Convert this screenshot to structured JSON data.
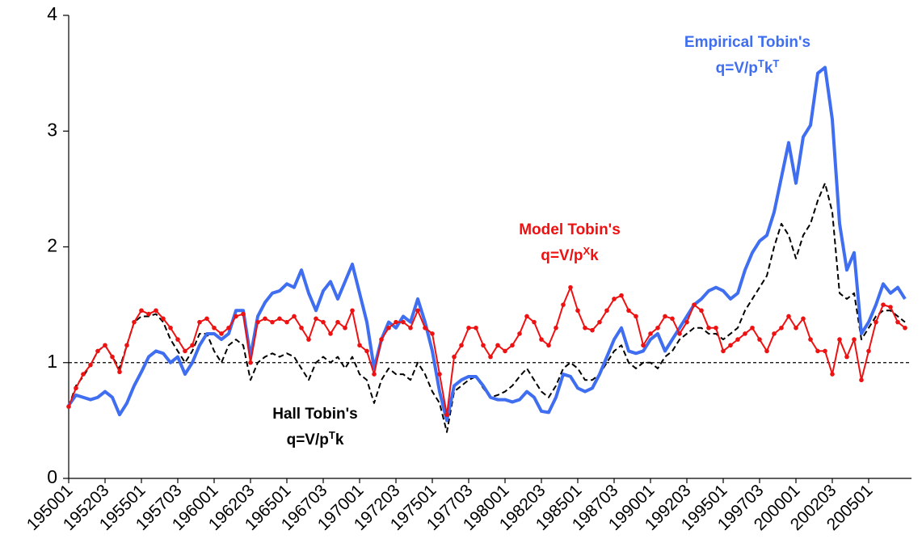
{
  "chart_data": {
    "type": "line",
    "categories": [
      "195001",
      null,
      null,
      null,
      null,
      "195203",
      null,
      null,
      null,
      null,
      "195501",
      null,
      null,
      null,
      null,
      "195703",
      null,
      null,
      null,
      null,
      "196001",
      null,
      null,
      null,
      null,
      "196203",
      null,
      null,
      null,
      null,
      "196501",
      null,
      null,
      null,
      null,
      "196703",
      null,
      null,
      null,
      null,
      "197001",
      null,
      null,
      null,
      null,
      "197203",
      null,
      null,
      null,
      null,
      "197501",
      null,
      null,
      null,
      null,
      "197703",
      null,
      null,
      null,
      null,
      "198001",
      null,
      null,
      null,
      null,
      "198203",
      null,
      null,
      null,
      null,
      "198501",
      null,
      null,
      null,
      null,
      "198703",
      null,
      null,
      null,
      null,
      "199001",
      null,
      null,
      null,
      null,
      "199203",
      null,
      null,
      null,
      null,
      "199501",
      null,
      null,
      null,
      null,
      "199703",
      null,
      null,
      null,
      null,
      "200001",
      null,
      null,
      null,
      null,
      "200203",
      null,
      null,
      null,
      null,
      "200501",
      null,
      null,
      null,
      null,
      null
    ],
    "series": [
      {
        "name": "Hall Tobin's",
        "formula": [
          "q=V/p",
          "T",
          "k"
        ],
        "color": "#000000",
        "dash": true,
        "markers": false,
        "values": [
          0.62,
          0.8,
          0.88,
          0.98,
          1.1,
          1.15,
          1.05,
          0.95,
          1.15,
          1.35,
          1.4,
          1.4,
          1.42,
          1.35,
          1.2,
          1.1,
          1.0,
          1.1,
          1.25,
          1.25,
          1.1,
          1.0,
          1.15,
          1.2,
          1.15,
          0.85,
          1.0,
          1.05,
          1.08,
          1.05,
          1.08,
          1.05,
          0.95,
          0.85,
          1.0,
          1.05,
          1.0,
          1.05,
          0.95,
          1.05,
          0.9,
          0.85,
          0.65,
          0.85,
          0.95,
          0.9,
          0.9,
          0.85,
          1.0,
          0.9,
          0.75,
          0.65,
          0.4,
          0.75,
          0.8,
          0.85,
          0.88,
          0.78,
          0.7,
          0.72,
          0.75,
          0.8,
          0.88,
          0.95,
          0.85,
          0.75,
          0.7,
          0.8,
          0.95,
          1.0,
          0.95,
          0.85,
          0.85,
          0.9,
          1.0,
          1.1,
          1.15,
          1.0,
          0.95,
          1.0,
          1.0,
          0.95,
          1.05,
          1.1,
          1.2,
          1.25,
          1.3,
          1.3,
          1.25,
          1.25,
          1.2,
          1.25,
          1.3,
          1.45,
          1.55,
          1.65,
          1.75,
          2.0,
          2.2,
          2.1,
          1.9,
          2.1,
          2.2,
          2.4,
          2.55,
          2.3,
          1.6,
          1.55,
          1.6,
          1.2,
          1.3,
          1.4,
          1.45,
          1.45,
          1.4,
          1.35
        ]
      },
      {
        "name": "Empirical Tobin's",
        "formula": [
          "q=V/p",
          "T",
          "k",
          "T"
        ],
        "color": "#3f6ef0",
        "dash": false,
        "markers": false,
        "values": [
          0.63,
          0.72,
          0.7,
          0.68,
          0.7,
          0.75,
          0.7,
          0.55,
          0.65,
          0.8,
          0.92,
          1.05,
          1.1,
          1.08,
          1.0,
          1.05,
          0.9,
          1.0,
          1.15,
          1.25,
          1.25,
          1.2,
          1.25,
          1.45,
          1.45,
          1.05,
          1.4,
          1.52,
          1.6,
          1.62,
          1.68,
          1.65,
          1.8,
          1.6,
          1.45,
          1.62,
          1.7,
          1.55,
          1.7,
          1.85,
          1.6,
          1.35,
          0.95,
          1.2,
          1.35,
          1.3,
          1.4,
          1.35,
          1.55,
          1.35,
          1.1,
          0.75,
          0.5,
          0.8,
          0.85,
          0.88,
          0.88,
          0.8,
          0.7,
          0.68,
          0.68,
          0.66,
          0.68,
          0.75,
          0.7,
          0.58,
          0.57,
          0.7,
          0.9,
          0.88,
          0.78,
          0.75,
          0.78,
          0.9,
          1.05,
          1.2,
          1.3,
          1.1,
          1.08,
          1.1,
          1.2,
          1.25,
          1.1,
          1.2,
          1.3,
          1.4,
          1.5,
          1.55,
          1.62,
          1.65,
          1.62,
          1.55,
          1.6,
          1.8,
          1.95,
          2.05,
          2.1,
          2.3,
          2.6,
          2.9,
          2.55,
          2.95,
          3.05,
          3.5,
          3.55,
          3.1,
          2.2,
          1.8,
          1.95,
          1.25,
          1.35,
          1.5,
          1.68,
          1.6,
          1.65,
          1.55
        ]
      },
      {
        "name": "Model Tobin's",
        "formula": [
          "q=V/p",
          "X",
          "k"
        ],
        "color": "#ee1111",
        "dash": false,
        "markers": true,
        "values": [
          0.62,
          0.78,
          0.9,
          0.98,
          1.1,
          1.15,
          1.05,
          0.92,
          1.15,
          1.35,
          1.45,
          1.42,
          1.45,
          1.38,
          1.3,
          1.2,
          1.1,
          1.15,
          1.35,
          1.38,
          1.3,
          1.25,
          1.3,
          1.4,
          1.42,
          1.0,
          1.35,
          1.38,
          1.35,
          1.38,
          1.35,
          1.4,
          1.3,
          1.2,
          1.38,
          1.35,
          1.25,
          1.35,
          1.3,
          1.45,
          1.15,
          1.1,
          0.9,
          1.2,
          1.3,
          1.35,
          1.35,
          1.3,
          1.45,
          1.3,
          1.25,
          0.9,
          0.55,
          1.05,
          1.15,
          1.3,
          1.3,
          1.15,
          1.05,
          1.15,
          1.1,
          1.15,
          1.25,
          1.4,
          1.35,
          1.2,
          1.15,
          1.3,
          1.5,
          1.65,
          1.45,
          1.3,
          1.28,
          1.35,
          1.45,
          1.55,
          1.58,
          1.45,
          1.4,
          1.15,
          1.25,
          1.3,
          1.4,
          1.38,
          1.25,
          1.35,
          1.5,
          1.45,
          1.3,
          1.3,
          1.1,
          1.15,
          1.2,
          1.25,
          1.3,
          1.2,
          1.1,
          1.25,
          1.3,
          1.4,
          1.3,
          1.38,
          1.2,
          1.1,
          1.1,
          0.9,
          1.2,
          1.05,
          1.2,
          0.85,
          1.1,
          1.35,
          1.5,
          1.48,
          1.35,
          1.3
        ]
      }
    ],
    "reference_line": 1,
    "ylim": [
      0,
      4
    ],
    "yticks": [
      0,
      1,
      2,
      3,
      4
    ],
    "grid": false
  }
}
